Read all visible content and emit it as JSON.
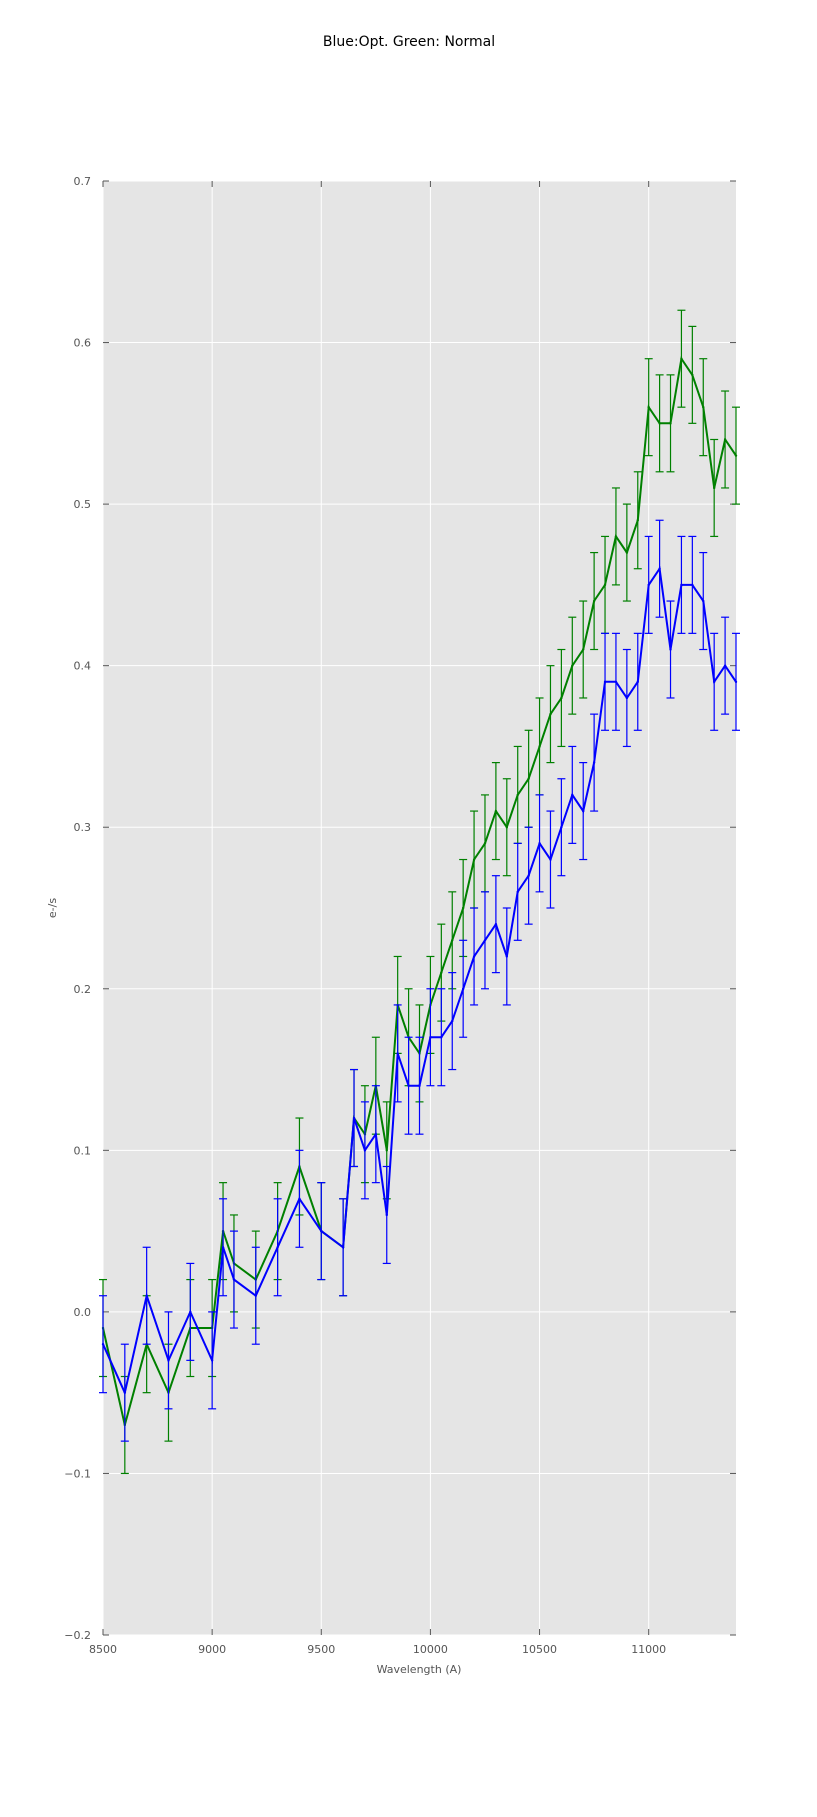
{
  "chart_data": {
    "type": "line",
    "title": "Blue:Opt. Green: Normal",
    "xlabel": "Wavelength (A)",
    "ylabel": "e-/s",
    "xlim": [
      8500,
      11400
    ],
    "ylim": [
      -0.2,
      0.7
    ],
    "xticks": [
      8500,
      9000,
      9500,
      10000,
      10500,
      11000
    ],
    "yticks": [
      -0.2,
      -0.1,
      0.0,
      0.1,
      0.2,
      0.3,
      0.4,
      0.5,
      0.6,
      0.7
    ],
    "xtick_labels": [
      "8500",
      "9000",
      "9500",
      "10000",
      "10500",
      "11000"
    ],
    "ytick_labels": [
      "−0.2",
      "−0.1",
      "0.0",
      "0.1",
      "0.2",
      "0.3",
      "0.4",
      "0.5",
      "0.6",
      "0.7"
    ],
    "grid": true,
    "background": "#e5e5e5",
    "series": [
      {
        "color": "#008000",
        "x": [
          8500,
          8600,
          8700,
          8800,
          8900,
          9000,
          9050,
          9100,
          9200,
          9300,
          9400,
          9500,
          9600,
          9650,
          9700,
          9750,
          9800,
          9850,
          9900,
          9950,
          10000,
          10050,
          10100,
          10150,
          10200,
          10250,
          10300,
          10350,
          10400,
          10450,
          10500,
          10550,
          10600,
          10650,
          10700,
          10750,
          10800,
          10850,
          10900,
          10950,
          11000,
          11050,
          11100,
          11150,
          11200,
          11250,
          11300,
          11350,
          11400
        ],
        "y": [
          -0.01,
          -0.07,
          -0.02,
          -0.05,
          -0.01,
          -0.01,
          0.05,
          0.03,
          0.02,
          0.05,
          0.09,
          0.05,
          0.04,
          0.12,
          0.11,
          0.14,
          0.1,
          0.19,
          0.17,
          0.16,
          0.19,
          0.21,
          0.23,
          0.25,
          0.28,
          0.29,
          0.31,
          0.3,
          0.32,
          0.33,
          0.35,
          0.37,
          0.38,
          0.4,
          0.41,
          0.44,
          0.45,
          0.48,
          0.47,
          0.49,
          0.56,
          0.55,
          0.55,
          0.59,
          0.58,
          0.56,
          0.51,
          0.54,
          0.53
        ],
        "err": 0.03
      },
      {
        "color": "#0000ff",
        "x": [
          8500,
          8600,
          8700,
          8800,
          8900,
          9000,
          9050,
          9100,
          9200,
          9300,
          9400,
          9500,
          9600,
          9650,
          9700,
          9750,
          9800,
          9850,
          9900,
          9950,
          10000,
          10050,
          10100,
          10150,
          10200,
          10250,
          10300,
          10350,
          10400,
          10450,
          10500,
          10550,
          10600,
          10650,
          10700,
          10750,
          10800,
          10850,
          10900,
          10950,
          11000,
          11050,
          11100,
          11150,
          11200,
          11250,
          11300,
          11350,
          11400
        ],
        "y": [
          -0.02,
          -0.05,
          0.01,
          -0.03,
          0.0,
          -0.03,
          0.04,
          0.02,
          0.01,
          0.04,
          0.07,
          0.05,
          0.04,
          0.12,
          0.1,
          0.11,
          0.06,
          0.16,
          0.14,
          0.14,
          0.17,
          0.17,
          0.18,
          0.2,
          0.22,
          0.23,
          0.24,
          0.22,
          0.26,
          0.27,
          0.29,
          0.28,
          0.3,
          0.32,
          0.31,
          0.34,
          0.39,
          0.39,
          0.38,
          0.39,
          0.45,
          0.46,
          0.41,
          0.45,
          0.45,
          0.44,
          0.39,
          0.4,
          0.39
        ],
        "err": 0.03
      }
    ]
  }
}
